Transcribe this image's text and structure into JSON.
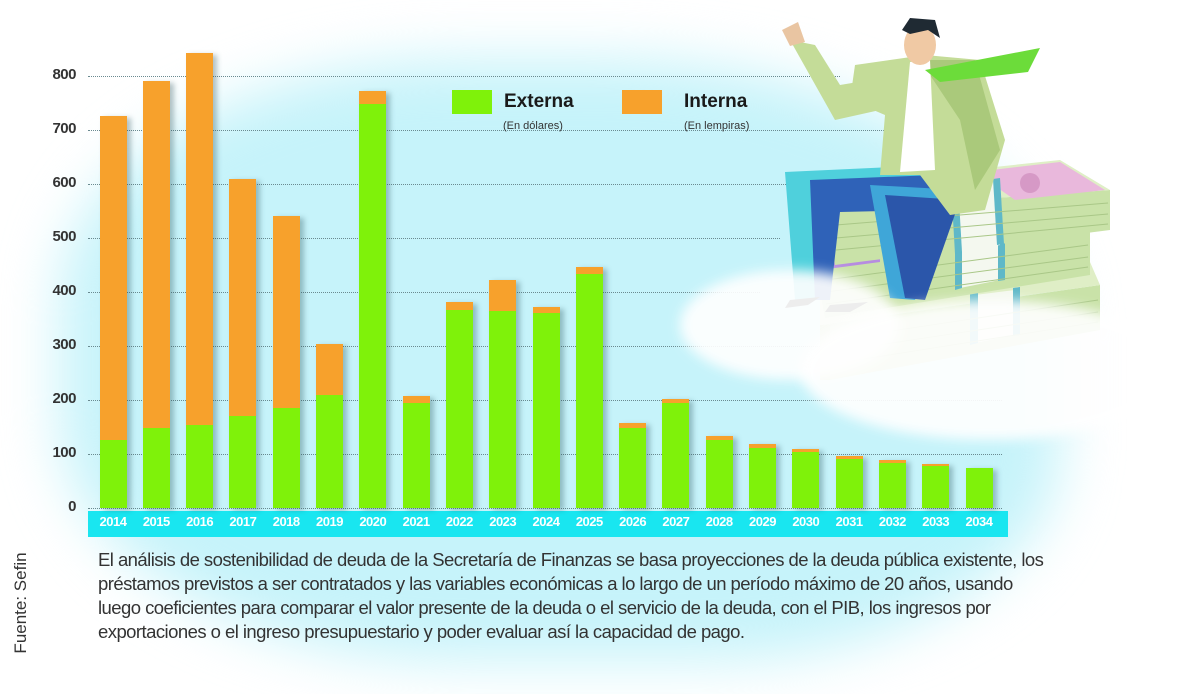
{
  "chart_data": {
    "type": "bar",
    "stacked": true,
    "title": "",
    "xlabel": "",
    "ylabel": "",
    "ylim": [
      0,
      800
    ],
    "yticks": [
      0,
      100,
      200,
      300,
      400,
      500,
      600,
      700,
      800
    ],
    "grid": true,
    "legend_position": "top-center",
    "categories": [
      "2014",
      "2015",
      "2016",
      "2017",
      "2018",
      "2019",
      "2020",
      "2021",
      "2022",
      "2023",
      "2024",
      "2025",
      "2026",
      "2027",
      "2028",
      "2029",
      "2030",
      "2031",
      "2032",
      "2033",
      "2034"
    ],
    "series": [
      {
        "name": "Externa",
        "subtitle": "(En dólares)",
        "color": "#7ff20a",
        "values": [
          126,
          148,
          154,
          171,
          185,
          209,
          749,
          195,
          367,
          364,
          362,
          433,
          149,
          195,
          126,
          112,
          104,
          90,
          83,
          78,
          74
        ]
      },
      {
        "name": "Interna",
        "subtitle": "(En lempiras)",
        "color": "#f7a12c",
        "values": [
          600,
          642,
          689,
          438,
          356,
          95,
          23,
          12,
          14,
          58,
          11,
          13,
          8,
          7,
          8,
          7,
          6,
          6,
          6,
          3,
          1
        ]
      }
    ],
    "totals": [
      726,
      790,
      843,
      609,
      541,
      304,
      772,
      207,
      381,
      422,
      373,
      446,
      157,
      202,
      134,
      119,
      110,
      96,
      89,
      81,
      75
    ]
  },
  "legend": {
    "externa": {
      "label": "Externa",
      "sub": "(En dólares)"
    },
    "interna": {
      "label": "Interna",
      "sub": "(En lempiras)"
    }
  },
  "description": {
    "lines": [
      "El análisis de sostenibilidad de deuda de la Secretaría de Finanzas se basa proyecciones de la deuda pública existente, los",
      "préstamos previstos a ser contratados y las variables económicas a lo largo de un período máximo de 20 años, usando",
      "luego coeficientes para comparar el valor presente de la deuda o el servicio de la deuda, con el PIB, los ingresos por",
      "exportaciones o el ingreso presupuestario y poder evaluar así la capacidad de pago."
    ]
  },
  "source": "Fuente: Sefin",
  "illustration": "businessman-sitting-on-money-stacks-icon",
  "colors": {
    "background_tint": "#c6f3fa",
    "axis_band": "#19e6f0",
    "externa": "#7ff20a",
    "interna": "#f7a12c"
  }
}
